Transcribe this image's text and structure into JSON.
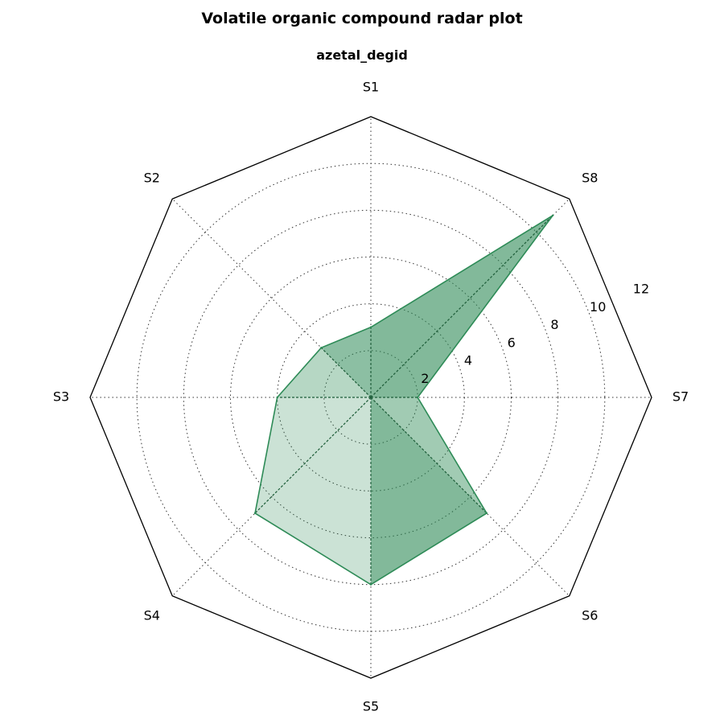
{
  "chart_data": {
    "type": "radar",
    "title": "Volatile organic compound radar plot",
    "subtitle": "azetal_degid",
    "categories": [
      "S1",
      "S2",
      "S3",
      "S4",
      "S5",
      "S6",
      "S7",
      "S8"
    ],
    "radial_ticks": [
      "2",
      "4",
      "6",
      "8",
      "10",
      "12"
    ],
    "rlim": [
      0,
      12
    ],
    "grid": true,
    "polygon_frame": true,
    "color": "#2e8b57",
    "values": [
      3,
      3,
      4,
      7,
      8,
      7,
      2,
      11
    ]
  }
}
